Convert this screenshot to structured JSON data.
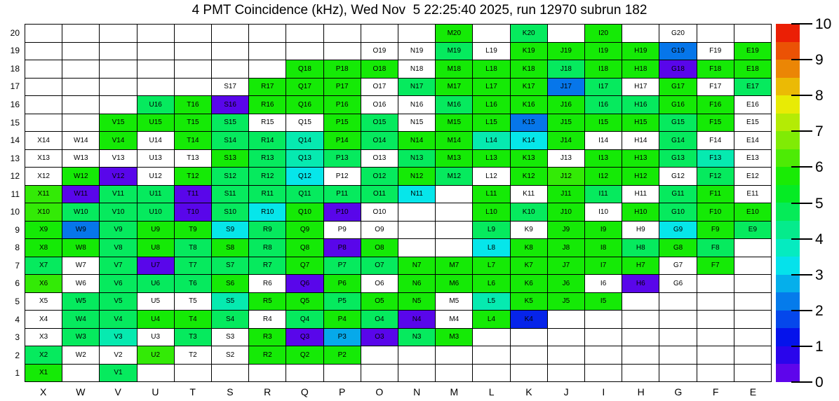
{
  "chart_data": {
    "type": "heatmap",
    "title": "4 PMT Coincidence (kHz), Wed Nov  5 22:25:40 2025, run 12970 subrun 182",
    "columns": [
      "X",
      "W",
      "V",
      "U",
      "T",
      "S",
      "R",
      "Q",
      "P",
      "O",
      "N",
      "M",
      "L",
      "K",
      "J",
      "I",
      "H",
      "G",
      "F",
      "E"
    ],
    "rows": [
      20,
      19,
      18,
      17,
      16,
      15,
      14,
      13,
      12,
      11,
      10,
      9,
      8,
      7,
      6,
      5,
      4,
      3,
      2,
      1
    ],
    "cell_label_format": "column letter + row number (e.g. X14); '.' = no channel, 'w' = channel shown with no rate fill",
    "cell_codes": [
      [
        ".",
        ".",
        ".",
        ".",
        ".",
        ".",
        ".",
        ".",
        ".",
        ".",
        ".",
        "g",
        ".",
        "s",
        ".",
        "g",
        ".",
        "w",
        ".",
        "."
      ],
      [
        ".",
        ".",
        ".",
        ".",
        ".",
        ".",
        ".",
        ".",
        ".",
        "w",
        "w",
        "s",
        "w",
        "g",
        "g",
        "g",
        "g",
        "db",
        "w",
        "g"
      ],
      [
        ".",
        ".",
        ".",
        ".",
        ".",
        ".",
        ".",
        "g",
        "g",
        "g",
        "w",
        "g",
        "g",
        "g",
        "s",
        "g",
        "g",
        "v",
        "g",
        "g"
      ],
      [
        ".",
        ".",
        ".",
        ".",
        ".",
        "w",
        "g",
        "g",
        "g",
        "w",
        "s",
        "g",
        "g",
        "g",
        "db",
        "s",
        "w",
        "g",
        "w",
        "s"
      ],
      [
        ".",
        ".",
        ".",
        "s",
        "g",
        "v",
        "g",
        "g",
        "g",
        "w",
        "w",
        "s",
        "g",
        "g",
        "g",
        "s",
        "s",
        "g",
        "g",
        "w"
      ],
      [
        ".",
        ".",
        "g",
        "g",
        "g",
        "s",
        "w",
        "w",
        "g",
        "s",
        "w",
        "g",
        "g",
        "db",
        "g",
        "g",
        "g",
        "s",
        "g",
        "w"
      ],
      [
        "w",
        "w",
        "g",
        "w",
        "g",
        "s",
        "s",
        "t",
        "g",
        "s",
        "g",
        "g",
        "t",
        "c",
        "g",
        "w",
        "w",
        "s",
        "w",
        "w"
      ],
      [
        "w",
        "w",
        "w",
        "w",
        "w",
        "g",
        "s",
        "t",
        "s",
        "w",
        "s",
        "g",
        "g",
        "g",
        "w",
        "g",
        "g",
        "s",
        "t",
        "w"
      ],
      [
        "w",
        "g",
        "v",
        "w",
        "g",
        "s",
        "s",
        "c",
        "w",
        "s",
        "g",
        "s",
        "w",
        "g",
        "lg",
        "g",
        "g",
        "w",
        "s",
        "w"
      ],
      [
        "lg",
        "v",
        "s",
        "s",
        "v",
        "s",
        "s",
        "s",
        "s",
        "s",
        "c",
        ".",
        "g",
        "w",
        "g",
        "s",
        "w",
        "s",
        "g",
        "w"
      ],
      [
        "lg",
        "s",
        "s",
        "s",
        "v",
        "s",
        "c",
        "g",
        "v",
        "w",
        ".",
        ".",
        "g",
        "s",
        "g",
        "w",
        "g",
        "s",
        "g",
        "g"
      ],
      [
        "g",
        "db",
        "s",
        "g",
        "g",
        "c",
        "s",
        "g",
        "w",
        "w",
        ".",
        ".",
        "s",
        "w",
        "g",
        "g",
        "w",
        "c",
        "g",
        "s"
      ],
      [
        "g",
        "g",
        "s",
        "g",
        "s",
        "g",
        "s",
        "g",
        "v",
        "g",
        ".",
        ".",
        "c",
        "g",
        "g",
        "g",
        "s",
        "g",
        "s",
        "."
      ],
      [
        "s",
        "w",
        "s",
        "v",
        "s",
        "s",
        "s",
        "g",
        "s",
        "s",
        "g",
        "g",
        "g",
        "g",
        "g",
        "g",
        "g",
        "w",
        "g",
        "."
      ],
      [
        "lg",
        "w",
        "s",
        "s",
        "s",
        "g",
        "w",
        "v",
        "g",
        "w",
        "g",
        "g",
        "g",
        "g",
        "g",
        "w",
        "v",
        "w",
        ".",
        "."
      ],
      [
        "w",
        "s",
        "s",
        "w",
        "w",
        "t",
        "g",
        "g",
        "s",
        "g",
        "g",
        "w",
        "t",
        "g",
        "g",
        "g",
        ".",
        ".",
        ".",
        "."
      ],
      [
        "w",
        "s",
        "s",
        "g",
        "g",
        "s",
        "w",
        "s",
        "g",
        "s",
        "v",
        "w",
        "g",
        "b",
        ".",
        ".",
        ".",
        ".",
        ".",
        "."
      ],
      [
        "w",
        "s",
        "t",
        "w",
        "s",
        "w",
        "g",
        "v",
        "lb",
        "v",
        "s",
        "g",
        ".",
        ".",
        ".",
        ".",
        ".",
        ".",
        ".",
        "."
      ],
      [
        "s",
        "w",
        "w",
        "lg",
        "w",
        "w",
        "g",
        "g",
        "g",
        ".",
        ".",
        ".",
        ".",
        ".",
        ".",
        ".",
        ".",
        ".",
        ".",
        "."
      ],
      [
        "g",
        ".",
        "s",
        ".",
        ".",
        ".",
        ".",
        ".",
        ".",
        ".",
        ".",
        ".",
        ".",
        ".",
        ".",
        ".",
        ".",
        ".",
        ".",
        "."
      ]
    ],
    "code_map": {
      "lg": {
        "value": 6.0,
        "color": "#33ea06"
      },
      "g": {
        "value": 5.7,
        "color": "#15ea06"
      },
      "s": {
        "value": 4.7,
        "color": "#06ea5e"
      },
      "t": {
        "value": 3.9,
        "color": "#06eab0"
      },
      "c": {
        "value": 3.3,
        "color": "#06e6ea"
      },
      "lb": {
        "value": 2.7,
        "color": "#06a9ea"
      },
      "db": {
        "value": 2.2,
        "color": "#0676ea"
      },
      "b": {
        "value": 1.4,
        "color": "#0624ea"
      },
      "v": {
        "value": 0.3,
        "color": "#5906ea"
      },
      "w": {
        "value": null,
        "color": "#ffffff"
      }
    },
    "colorbar": {
      "min": 0,
      "max": 10,
      "ticks": [
        0,
        1,
        2,
        3,
        4,
        5,
        6,
        7,
        8,
        9,
        10
      ],
      "bands": 20,
      "top_color": "#f20d00",
      "bottom_color": "#6a06ea",
      "legend_position": "right"
    },
    "grid": true
  }
}
